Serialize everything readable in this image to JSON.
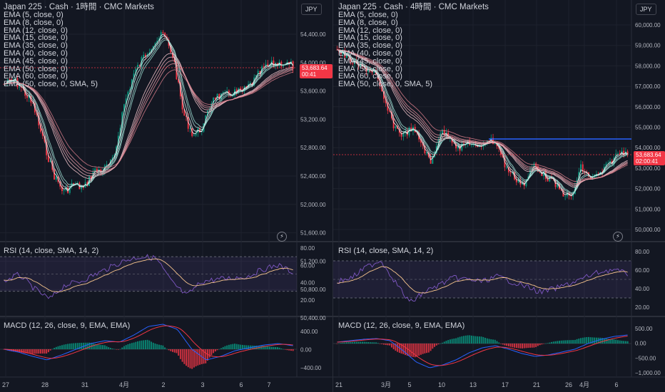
{
  "left_chart": {
    "title": "Japan 225 · Cash · 1時間 · CMC Markets",
    "indicators": [
      "EMA (5, close, 0)",
      "EMA (8, close, 0)",
      "EMA (12, close, 0)",
      "EMA (15, close, 0)",
      "EMA (35, close, 0)",
      "EMA (40, close, 0)",
      "EMA (45, close, 0)",
      "EMA (50, close, 0)",
      "EMA (60, close, 0)",
      "EMA (50, close, 0, SMA, 5)"
    ],
    "currency": "JPY",
    "price_ticks": [
      "54,400.00",
      "54,000.00",
      "53,600.00",
      "53,200.00",
      "52,800.00",
      "52,400.00",
      "52,000.00",
      "51,600.00",
      "51,200.00",
      "50,800.00",
      "50,400.00"
    ],
    "current_price": "53,683.64",
    "countdown": "00:41",
    "rsi_label": "RSI (14, close, SMA, 14, 2)",
    "rsi_ticks": [
      "80.00",
      "60.00",
      "40.00",
      "20.00"
    ],
    "macd_label": "MACD (12, 26, close, 9, EMA, EMA)",
    "macd_ticks": [
      "400.00",
      "0.00",
      "−400.00"
    ],
    "time_labels": [
      "27",
      "28",
      "31",
      "4月",
      "2",
      "3",
      "6",
      "7"
    ]
  },
  "right_chart": {
    "title": "Japan 225 · Cash · 4時間 · CMC Markets",
    "indicators": [
      "EMA (5, close, 0)",
      "EMA (8, close, 0)",
      "EMA (12, close, 0)",
      "EMA (15, close, 0)",
      "EMA (35, close, 0)",
      "EMA (40, close, 0)",
      "EMA (45, close, 0)",
      "EMA (50, close, 0)",
      "EMA (60, close, 0)",
      "EMA (50, close, 0, SMA, 5)"
    ],
    "currency": "JPY",
    "price_ticks": [
      "60,000.00",
      "59,000.00",
      "58,000.00",
      "57,000.00",
      "56,000.00",
      "55,000.00",
      "54,000.00",
      "53,000.00",
      "52,000.00",
      "51,000.00",
      "50,000.00"
    ],
    "current_price": "53,683.64",
    "countdown": "02:00:41",
    "rsi_label": "RSI (14, close, SMA, 14, 2)",
    "rsi_ticks": [
      "80.00",
      "60.00",
      "40.00",
      "20.00"
    ],
    "macd_label": "MACD (12, 26, close, 9, EMA, EMA)",
    "macd_ticks": [
      "500.00",
      "0.00",
      "−500.00",
      "−1,000.00"
    ],
    "time_labels": [
      "21",
      "3月",
      "5",
      "10",
      "13",
      "17",
      "21",
      "26",
      "4月",
      "6"
    ]
  },
  "colors": {
    "background": "#131722",
    "grid": "#1e222d",
    "up": "#089981",
    "down": "#f23645",
    "rsi": "#7e57c2",
    "rsi_ma": "#f7c58d",
    "macd": "#2962ff",
    "signal": "#f23645",
    "resistance": "#2962ff"
  },
  "icons": {
    "alert": "lightning-icon"
  }
}
